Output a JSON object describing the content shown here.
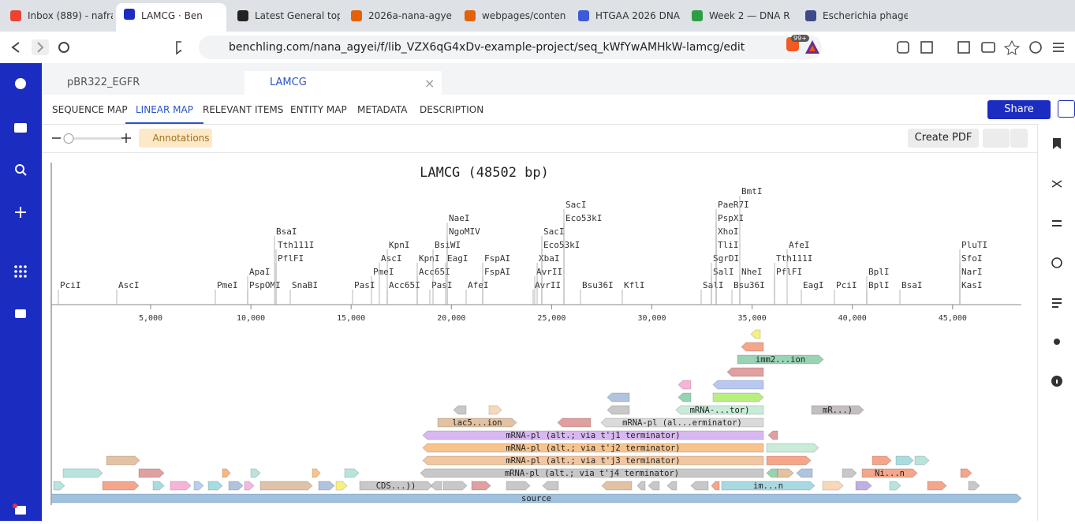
{
  "browser": {
    "tabs": [
      "Inbox (889) - nafra",
      "LAMCG · Ben",
      "Latest General top",
      "2026a-nana-agye",
      "webpages/conten",
      "HTGAA 2026 DNA",
      "Week 2 — DNA R",
      "Escherichia phage"
    ],
    "url": "benchling.com/nana_agyei/f/lib_VZX6qG4xDv-example-project/seq_kWfYwAMHkW-lamcg/edit",
    "badge": "99+"
  },
  "document_tabs": [
    "pBR322_EGFR",
    "LAMCG"
  ],
  "view_tabs": [
    "SEQUENCE MAP",
    "LINEAR MAP",
    "RELEVANT ITEMS",
    "ENTITY MAP",
    "METADATA",
    "DESCRIPTION"
  ],
  "share": "Share",
  "toolbar": {
    "annotations": "Annotations",
    "create_pdf": "Create PDF"
  },
  "map": {
    "title": "LAMCG (48502 bp)",
    "ruler_ticks": [
      "5,000",
      "10,000",
      "15,000",
      "20,000",
      "25,000",
      "30,000",
      "35,000",
      "40,000",
      "45,000"
    ],
    "enzymes": [
      "PciI",
      "AscI",
      "PmeI",
      "PspOMI",
      "ApaI",
      "SnaBI",
      "PflFI",
      "Tth111I",
      "BsaI",
      "PasI",
      "PmeI",
      "AscI",
      "KpnI",
      "Acc65I",
      "Acc65I",
      "KpnI",
      "PasI",
      "BsiWI",
      "EagI",
      "NgoMIV",
      "NaeI",
      "AfeI",
      "FspAI",
      "FspAI",
      "AvrII",
      "AvrII",
      "XbaI",
      "Eco53kI",
      "SacI",
      "Bsu36I",
      "KflI",
      "Eco53kI",
      "SacI",
      "SalI",
      "SalI",
      "SgrDI",
      "TliI",
      "XhoI",
      "PspXI",
      "PaeR7I",
      "BmtI",
      "NheI",
      "Bsu36I",
      "PflFI",
      "Tth111I",
      "AfeI",
      "EagI",
      "PciI",
      "BplI",
      "BplI",
      "BsaI",
      "KasI",
      "NarI",
      "SfoI",
      "PluTI"
    ],
    "features": [
      "source",
      "CDS...))",
      "im...n",
      "Ni...n",
      "mRNA-pl (alt.; via t'j4 terminator)",
      "mRNA-pl (alt.; via t'j3 terminator)",
      "mRNA-pl (alt.; via t'j2 terminator)",
      "mRNA-pl (alt.; via t'j1 terminator)",
      "lac5...ion",
      "mRNA-pl (al...erminator)",
      "mRNA-...tor)",
      "mR...)",
      "imm2...ion"
    ]
  }
}
